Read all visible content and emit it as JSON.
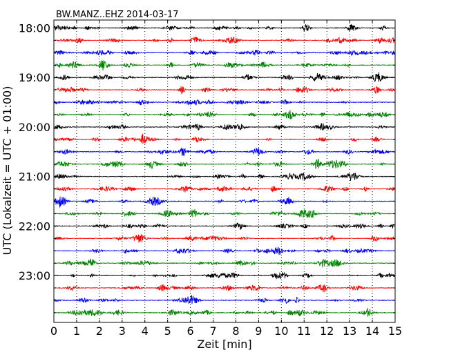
{
  "chart_data": {
    "type": "line",
    "title": "BW.MANZ..EHZ 2014-03-17",
    "xlabel": "Zeit  [min]",
    "ylabel": "UTC (Lokalzeit = UTC + 01:00)",
    "xlim": [
      0,
      15
    ],
    "x_ticks": [
      "0",
      "1",
      "2",
      "3",
      "4",
      "5",
      "6",
      "7",
      "8",
      "9",
      "10",
      "11",
      "12",
      "13",
      "14",
      "15"
    ],
    "y_ticks": [
      "18:00",
      "19:00",
      "20:00",
      "21:00",
      "22:00",
      "23:00"
    ],
    "trace_start_times": [
      "18:00",
      "18:15",
      "18:30",
      "18:45",
      "19:00",
      "19:15",
      "19:30",
      "19:45",
      "20:00",
      "20:15",
      "20:30",
      "20:45",
      "21:00",
      "21:15",
      "21:30",
      "21:45",
      "22:00",
      "22:15",
      "22:30",
      "22:45",
      "23:00",
      "23:15",
      "23:30",
      "23:45"
    ],
    "trace_minutes_per_line": 15,
    "trace_colors": [
      "#000000",
      "#ff0000",
      "#0000ff",
      "#008000"
    ],
    "grid": true,
    "grid_style": "dotted"
  }
}
